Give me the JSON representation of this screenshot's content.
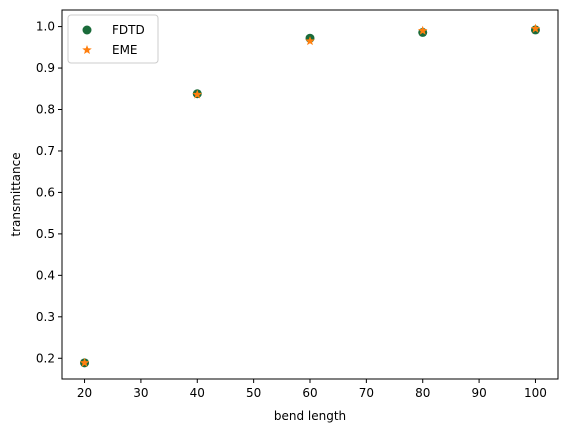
{
  "chart_data": {
    "type": "scatter",
    "title": "",
    "xlabel": "bend length",
    "ylabel": "transmittance",
    "xlim": [
      16,
      104
    ],
    "ylim": [
      0.15,
      1.04
    ],
    "xticks": [
      20,
      30,
      40,
      50,
      60,
      70,
      80,
      90,
      100
    ],
    "yticks": [
      0.2,
      0.3,
      0.4,
      0.5,
      0.6,
      0.7,
      0.8,
      0.9,
      1.0
    ],
    "ytick_labels": [
      "0.2",
      "0.3",
      "0.4",
      "0.5",
      "0.6",
      "0.7",
      "0.8",
      "0.9",
      "1.0"
    ],
    "grid": false,
    "legend_position": "top-left",
    "series": [
      {
        "name": "FDTD",
        "marker": "circle",
        "color": "#1a6b3a",
        "x": [
          20,
          40,
          60,
          80,
          100
        ],
        "y": [
          0.189,
          0.838,
          0.972,
          0.986,
          0.992
        ]
      },
      {
        "name": "EME",
        "marker": "star",
        "color": "#ff7f0e",
        "x": [
          20,
          40,
          60,
          80,
          100
        ],
        "y": [
          0.189,
          0.836,
          0.965,
          0.99,
          0.995
        ]
      }
    ]
  }
}
